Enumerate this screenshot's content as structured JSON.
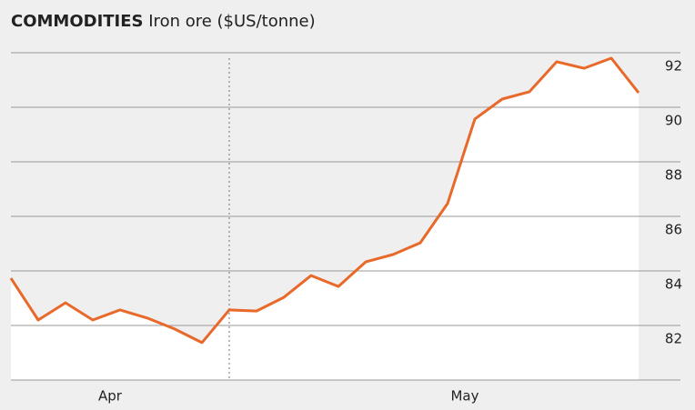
{
  "chart_data": {
    "type": "line",
    "title": "COMMODITIES",
    "subtitle": "Iron ore ($US/tonne)",
    "categories": [
      null,
      null,
      null,
      null,
      "Apr",
      null,
      null,
      null,
      null,
      null,
      null,
      null,
      null,
      null,
      null,
      null,
      null,
      "May",
      null,
      null,
      null,
      null,
      null,
      null
    ],
    "series": [
      {
        "name": "Iron ore",
        "color": "#e8692a",
        "values": [
          83.73,
          82.2,
          82.83,
          82.2,
          82.57,
          82.27,
          81.87,
          81.37,
          82.57,
          82.53,
          83.03,
          83.83,
          83.43,
          84.33,
          84.6,
          85.03,
          86.47,
          89.57,
          90.3,
          90.57,
          91.67,
          91.43,
          91.8,
          90.53
        ]
      }
    ],
    "ylim": [
      80,
      92
    ],
    "yticks": [
      82,
      84,
      86,
      88,
      90,
      92
    ],
    "grid": true
  }
}
